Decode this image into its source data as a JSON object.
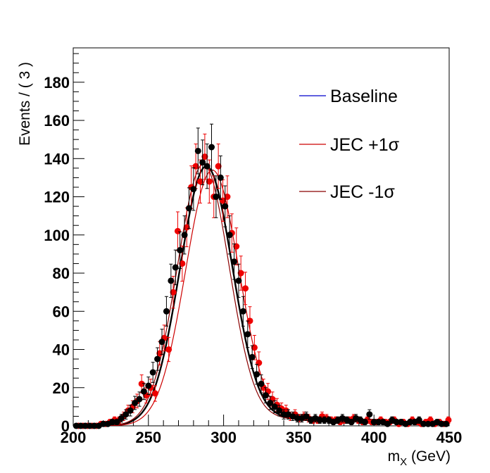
{
  "chart_data": {
    "type": "scatter",
    "x_label_main": "m",
    "x_label_sub": "X",
    "x_label_unit": "(GeV)",
    "ylabel": "Events / ( 3 )",
    "xlim": [
      200,
      450
    ],
    "ylim": [
      0,
      198
    ],
    "x_ticks": [
      200,
      250,
      300,
      350,
      400,
      450
    ],
    "y_ticks": [
      0,
      20,
      40,
      60,
      80,
      100,
      120,
      140,
      160,
      180
    ],
    "legend": {
      "placement": "top-right",
      "entries": [
        {
          "label": "Baseline",
          "color": "#0000cc"
        },
        {
          "label": "JEC +1σ",
          "color": "#cc0000"
        },
        {
          "label": "JEC -1σ",
          "color": "#8b0000"
        }
      ]
    },
    "fit_curves": [
      {
        "name": "Baseline",
        "color": "#000000",
        "width": 2.4,
        "mean": 288.5,
        "amplitude": 136,
        "sigma": 17.5,
        "tail": 4
      },
      {
        "name": "JEC +1σ",
        "color": "#cc0000",
        "width": 1.2,
        "mean": 292.5,
        "amplitude": 134,
        "sigma": 17.8,
        "tail": 4
      },
      {
        "name": "JEC -1σ",
        "color": "#8b0000",
        "width": 1.2,
        "mean": 286.5,
        "amplitude": 137,
        "sigma": 17.3,
        "tail": 4
      }
    ],
    "series": [
      {
        "color": "#000000",
        "x": [
          202,
          205,
          208,
          211,
          214,
          217,
          220,
          223,
          226,
          229,
          232,
          235,
          238,
          241,
          244,
          247,
          250,
          253,
          256,
          259,
          262,
          265,
          268,
          271,
          274,
          277,
          280,
          283,
          286,
          289,
          292,
          295,
          298,
          301,
          304,
          307,
          310,
          313,
          316,
          319,
          322,
          325,
          328,
          331,
          334,
          337,
          340,
          343,
          346,
          349,
          352,
          355,
          358,
          361,
          364,
          367,
          370,
          373,
          376,
          379,
          382,
          385,
          388,
          391,
          394,
          397,
          400,
          403,
          406,
          409,
          412,
          415,
          418,
          421,
          424,
          427,
          430,
          433,
          436,
          439,
          442,
          445,
          448
        ],
        "y": [
          0,
          0,
          0,
          0,
          0,
          0,
          1,
          1,
          2,
          2,
          4,
          6,
          8,
          12,
          14,
          18,
          21,
          28,
          35,
          44,
          60,
          76,
          83,
          92,
          100,
          114,
          124,
          144,
          138,
          136,
          146,
          120,
          130,
          115,
          100,
          86,
          76,
          60,
          48,
          36,
          27,
          22,
          16,
          12,
          10,
          8,
          6,
          6,
          5,
          4,
          4,
          5,
          3,
          4,
          3,
          3,
          3,
          2,
          3,
          4,
          3,
          2,
          4,
          3,
          2,
          6,
          2,
          2,
          2,
          1,
          3,
          2,
          2,
          1,
          2,
          2,
          3,
          1,
          1,
          1,
          2,
          1,
          1
        ]
      },
      {
        "color": "#ee0000",
        "x": [
          203.5,
          206.5,
          209.5,
          212.5,
          215.5,
          218.5,
          221.5,
          224.5,
          227.5,
          230.5,
          233.5,
          236.5,
          239.5,
          242.5,
          245.5,
          248.5,
          251.5,
          254.5,
          257.5,
          260.5,
          263.5,
          266.5,
          269.5,
          272.5,
          275.5,
          278.5,
          281.5,
          284.5,
          287.5,
          290.5,
          293.5,
          296.5,
          299.5,
          302.5,
          305.5,
          308.5,
          311.5,
          314.5,
          317.5,
          320.5,
          323.5,
          326.5,
          329.5,
          332.5,
          335.5,
          338.5,
          341.5,
          344.5,
          347.5,
          350.5,
          353.5,
          356.5,
          359.5,
          362.5,
          365.5,
          368.5,
          371.5,
          374.5,
          377.5,
          380.5,
          383.5,
          386.5,
          389.5,
          392.5,
          395.5,
          398.5,
          401.5,
          404.5,
          407.5,
          410.5,
          413.5,
          416.5,
          419.5,
          422.5,
          425.5,
          428.5,
          431.5,
          434.5,
          437.5,
          440.5,
          443.5,
          446.5,
          449.5
        ],
        "y": [
          0,
          0,
          0,
          0,
          0,
          1,
          1,
          2,
          3,
          3,
          5,
          8,
          10,
          13,
          22,
          16,
          20,
          17,
          38,
          46,
          40,
          70,
          102,
          85,
          104,
          125,
          136,
          128,
          141,
          128,
          120,
          136,
          118,
          120,
          101,
          94,
          80,
          72,
          55,
          41,
          33,
          20,
          18,
          14,
          11,
          9,
          8,
          5,
          6,
          4,
          5,
          4,
          3,
          3,
          5,
          4,
          3,
          3,
          2,
          3,
          3,
          4,
          3,
          2,
          3,
          2,
          2,
          3,
          2,
          2,
          3,
          1,
          2,
          1,
          3,
          2,
          1,
          2,
          3,
          1,
          2,
          1,
          3
        ]
      }
    ]
  }
}
